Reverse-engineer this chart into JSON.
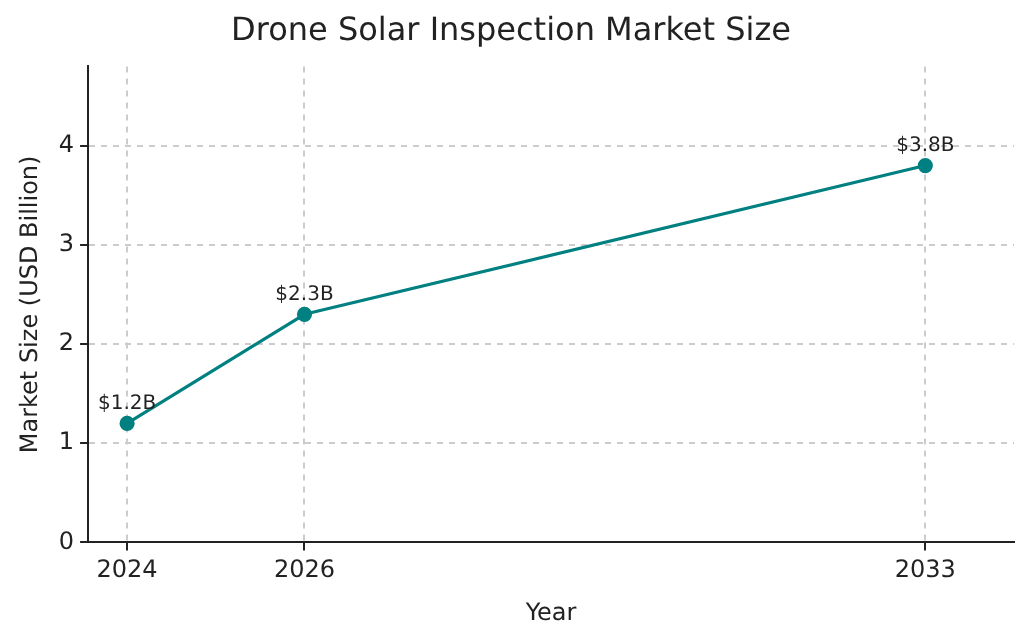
{
  "chart_data": {
    "type": "line",
    "title": "Drone Solar Inspection Market Size",
    "xlabel": "Year",
    "ylabel": "Market Size (USD Billion)",
    "x": [
      2024,
      2026,
      2033
    ],
    "series": [
      {
        "color": "#008080",
        "values": [
          1.2,
          2.3,
          3.8
        ],
        "value_labels": [
          "$1.2B",
          "$2.3B",
          "$3.8B"
        ]
      }
    ],
    "xlim": [
      2023.56,
      2034.0
    ],
    "xticks": [
      2024,
      2026,
      2033
    ],
    "ylim": [
      0,
      4.8
    ],
    "yticks": [
      0,
      1,
      2,
      3,
      4
    ],
    "grid": true,
    "legend": false,
    "marker": "circle",
    "line_style": "solid"
  }
}
